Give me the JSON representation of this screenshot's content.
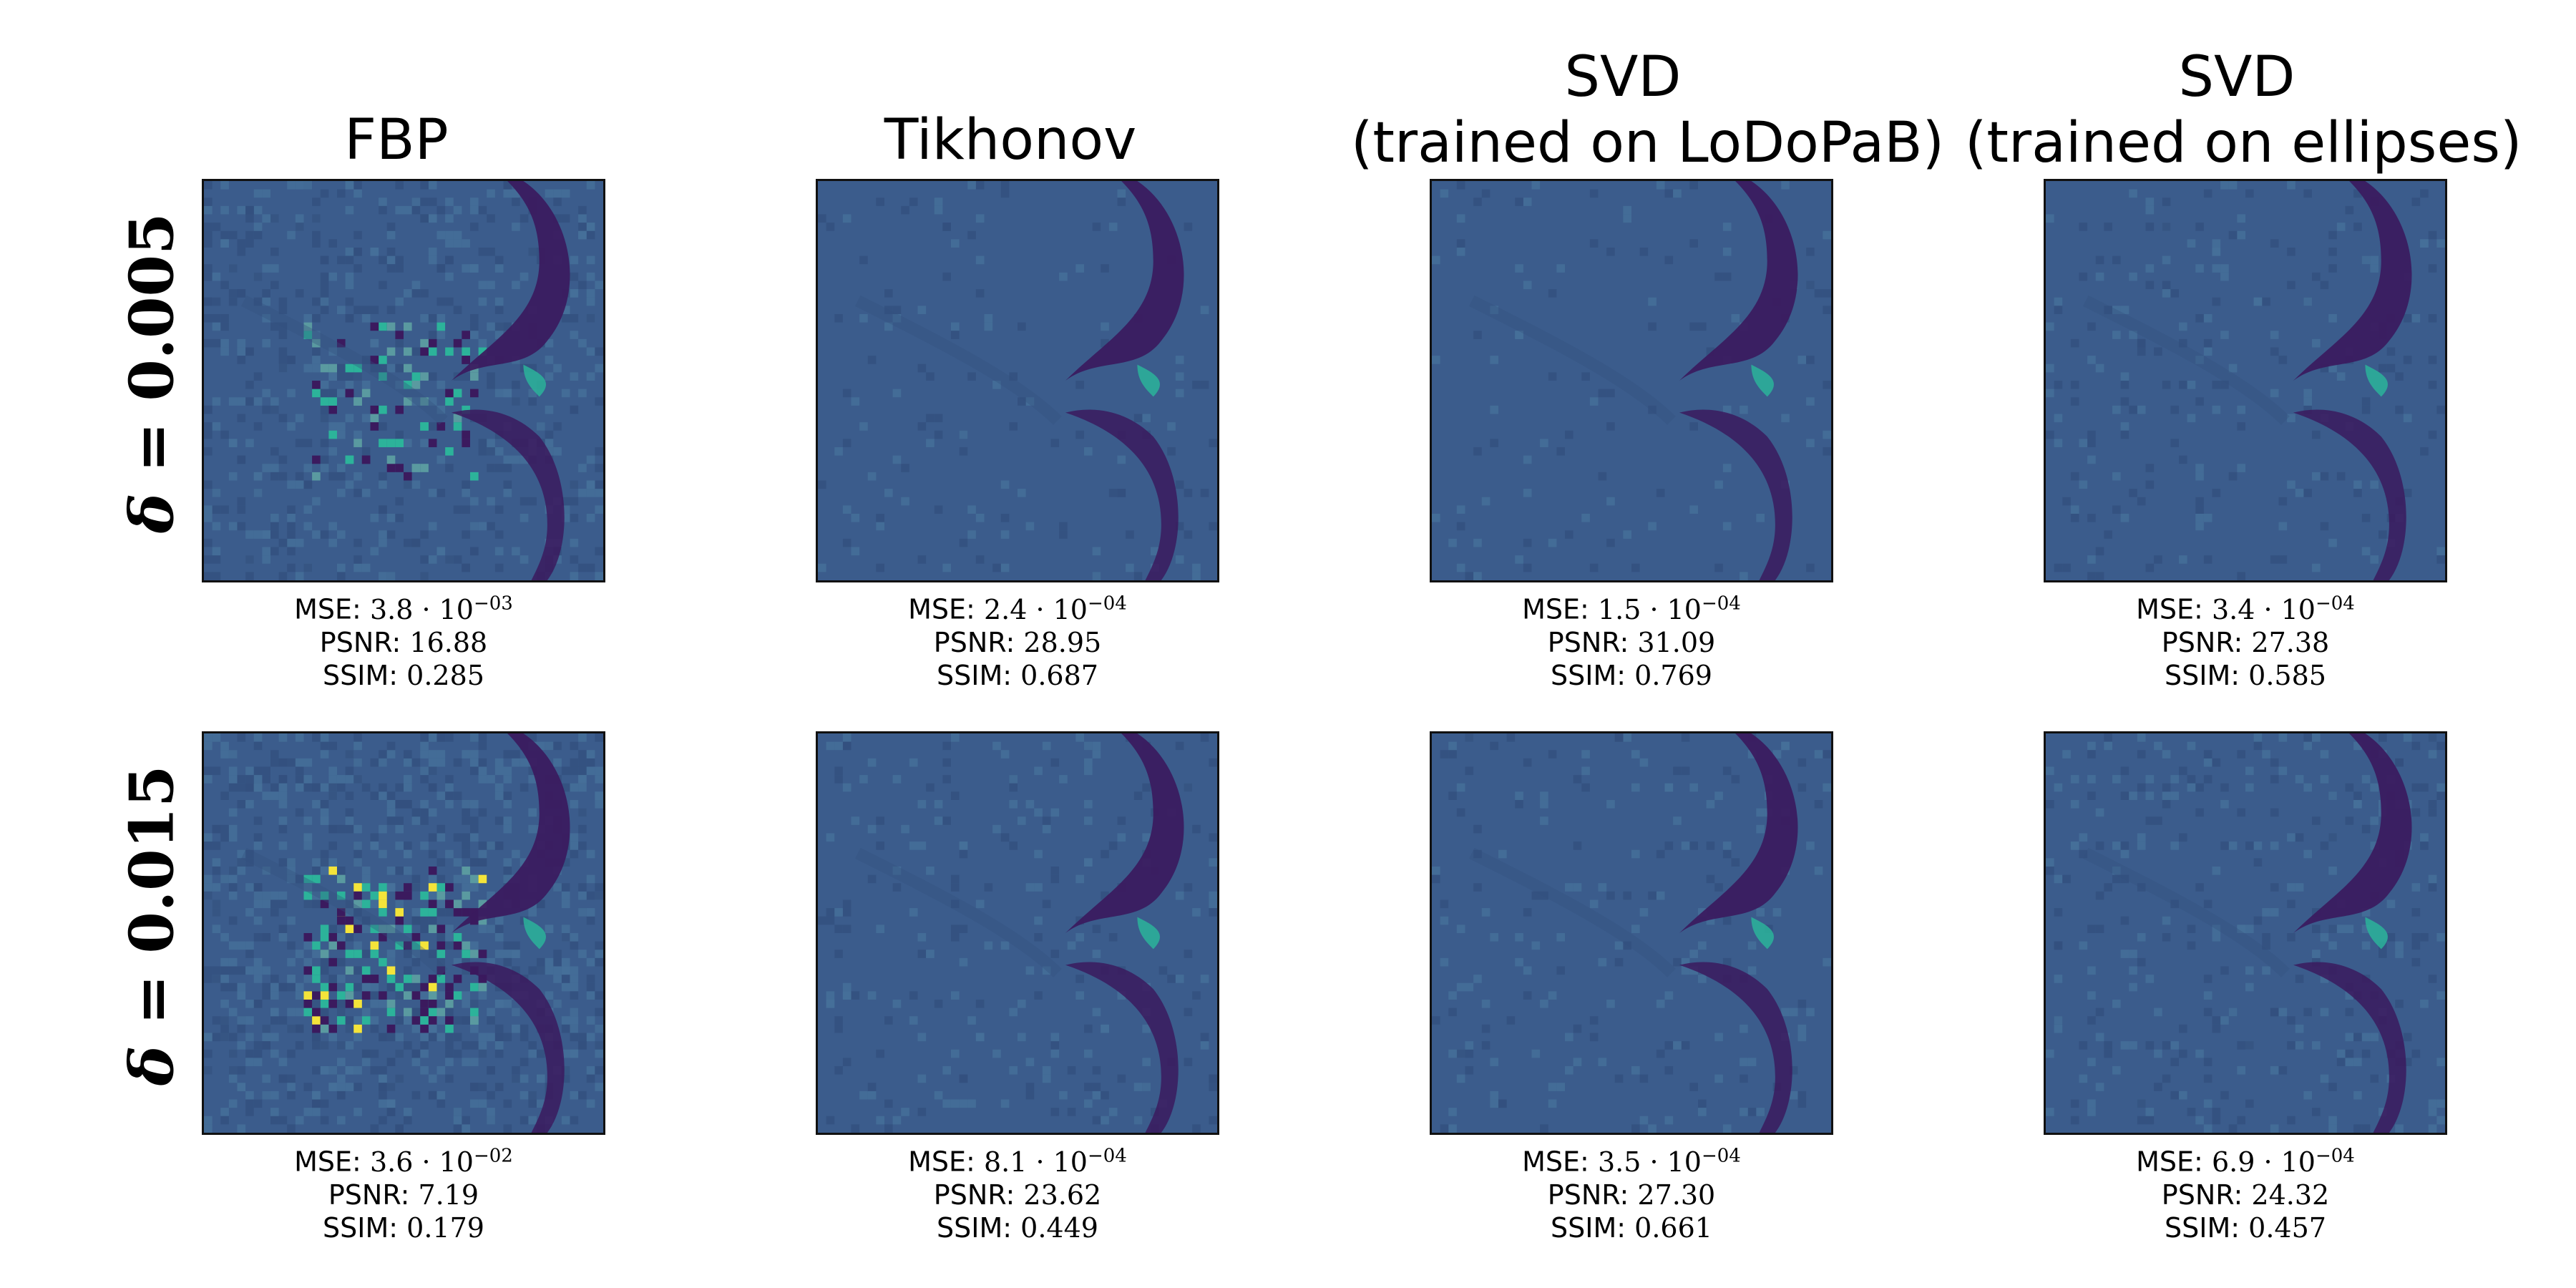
{
  "columns": [
    {
      "title_line1": "FBP",
      "title_line2": ""
    },
    {
      "title_line1": "Tikhonov",
      "title_line2": ""
    },
    {
      "title_line1": "SVD",
      "title_line2": "(trained on LoDoPaB)"
    },
    {
      "title_line1": "SVD",
      "title_line2": "(trained on ellipses)"
    }
  ],
  "rows": [
    {
      "symbol": "δ",
      "rest": " = 0.005"
    },
    {
      "symbol": "δ",
      "rest": " = 0.015"
    }
  ],
  "metric_labels": {
    "mse": "MSE:",
    "psnr": "PSNR:",
    "ssim": "SSIM:"
  },
  "panels": [
    [
      {
        "mse_mant": "3.8",
        "mse_exp": "−03",
        "psnr": "16.88",
        "ssim": "0.285",
        "noise": 0.55,
        "artifact": 0.5
      },
      {
        "mse_mant": "2.4",
        "mse_exp": "−04",
        "psnr": "28.95",
        "ssim": "0.687",
        "noise": 0.12,
        "artifact": 0
      },
      {
        "mse_mant": "1.5",
        "mse_exp": "−04",
        "psnr": "31.09",
        "ssim": "0.769",
        "noise": 0.1,
        "artifact": 0
      },
      {
        "mse_mant": "3.4",
        "mse_exp": "−04",
        "psnr": "27.38",
        "ssim": "0.585",
        "noise": 0.2,
        "artifact": 0
      }
    ],
    [
      {
        "mse_mant": "3.6",
        "mse_exp": "−02",
        "psnr": "7.19",
        "ssim": "0.179",
        "noise": 0.9,
        "artifact": 1
      },
      {
        "mse_mant": "8.1",
        "mse_exp": "−04",
        "psnr": "23.62",
        "ssim": "0.449",
        "noise": 0.22,
        "artifact": 0
      },
      {
        "mse_mant": "3.5",
        "mse_exp": "−04",
        "psnr": "27.30",
        "ssim": "0.661",
        "noise": 0.18,
        "artifact": 0
      },
      {
        "mse_mant": "6.9",
        "mse_exp": "−04",
        "psnr": "24.32",
        "ssim": "0.457",
        "noise": 0.3,
        "artifact": 0
      }
    ]
  ],
  "colors": {
    "background": "#3b5c8c",
    "dark": "#3b1a5e",
    "bright": "#2cb39a",
    "hot": "#f4e43a"
  }
}
